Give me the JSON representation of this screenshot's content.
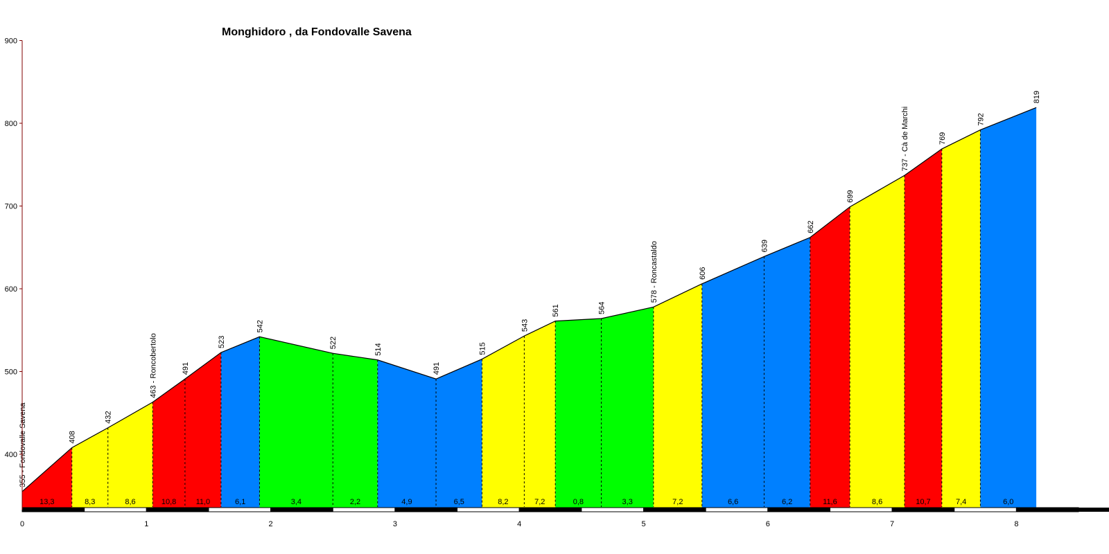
{
  "chart_data": {
    "type": "area",
    "title": "Monghidoro , da Fondovalle Savena",
    "xlabel": "",
    "ylabel": "",
    "xlim": [
      0,
      8.6
    ],
    "ylim": [
      335,
      900
    ],
    "x_ticks": [
      "0",
      "1",
      "2",
      "3",
      "4",
      "5",
      "6",
      "7",
      "8"
    ],
    "y_ticks": [
      "400",
      "500",
      "600",
      "700",
      "800",
      "900"
    ],
    "points": [
      {
        "x": 0.0,
        "y": 355,
        "label": "355 - Fondovalle Savena"
      },
      {
        "x": 0.4,
        "y": 408,
        "label": "408"
      },
      {
        "x": 0.69,
        "y": 432,
        "label": "432"
      },
      {
        "x": 1.05,
        "y": 463,
        "label": "463 - Roncobertolo"
      },
      {
        "x": 1.31,
        "y": 491,
        "label": "491"
      },
      {
        "x": 1.6,
        "y": 523,
        "label": "523"
      },
      {
        "x": 1.91,
        "y": 542,
        "label": "542"
      },
      {
        "x": 2.5,
        "y": 522,
        "label": "522"
      },
      {
        "x": 2.86,
        "y": 514,
        "label": "514"
      },
      {
        "x": 3.33,
        "y": 491,
        "label": "491"
      },
      {
        "x": 3.7,
        "y": 515,
        "label": "515"
      },
      {
        "x": 4.04,
        "y": 543,
        "label": "543"
      },
      {
        "x": 4.29,
        "y": 561,
        "label": "561"
      },
      {
        "x": 4.66,
        "y": 564,
        "label": "564"
      },
      {
        "x": 5.08,
        "y": 578,
        "label": "578 - Roncastaldo"
      },
      {
        "x": 5.47,
        "y": 606,
        "label": "606"
      },
      {
        "x": 5.97,
        "y": 639,
        "label": "639"
      },
      {
        "x": 6.34,
        "y": 662,
        "label": "662"
      },
      {
        "x": 6.66,
        "y": 699,
        "label": "699"
      },
      {
        "x": 7.1,
        "y": 737,
        "label": "737 - Cà de Marchi"
      },
      {
        "x": 7.4,
        "y": 769,
        "label": "769"
      },
      {
        "x": 7.71,
        "y": 792,
        "label": "792"
      },
      {
        "x": 8.16,
        "y": 819,
        "label": "819"
      }
    ],
    "gradients": [
      "13,3",
      "8,3",
      "8,6",
      "10,8",
      "11,0",
      "6,1",
      "3,4",
      "2,2",
      "4,9",
      "6,5",
      "8,2",
      "7,2",
      "0,8",
      "3,3",
      "7,2",
      "6,6",
      "6,2",
      "11,6",
      "8,6",
      "10,7",
      "7,4",
      "6,0"
    ],
    "segment_colors": [
      "#ff0000",
      "#ffff00",
      "#ffff00",
      "#ff0000",
      "#ff0000",
      "#0080ff",
      "#00ff00",
      "#00ff00",
      "#0080ff",
      "#0080ff",
      "#ffff00",
      "#ffff00",
      "#00ff00",
      "#00ff00",
      "#ffff00",
      "#0080ff",
      "#0080ff",
      "#ff0000",
      "#ffff00",
      "#ff0000",
      "#ffff00",
      "#0080ff"
    ],
    "grid": false,
    "legend": "none"
  },
  "colors": {
    "axis": "#000000",
    "y_axis": "#800000",
    "profile_line": "#000000",
    "scale_dark": "#000000",
    "scale_light": "#ffffff"
  }
}
